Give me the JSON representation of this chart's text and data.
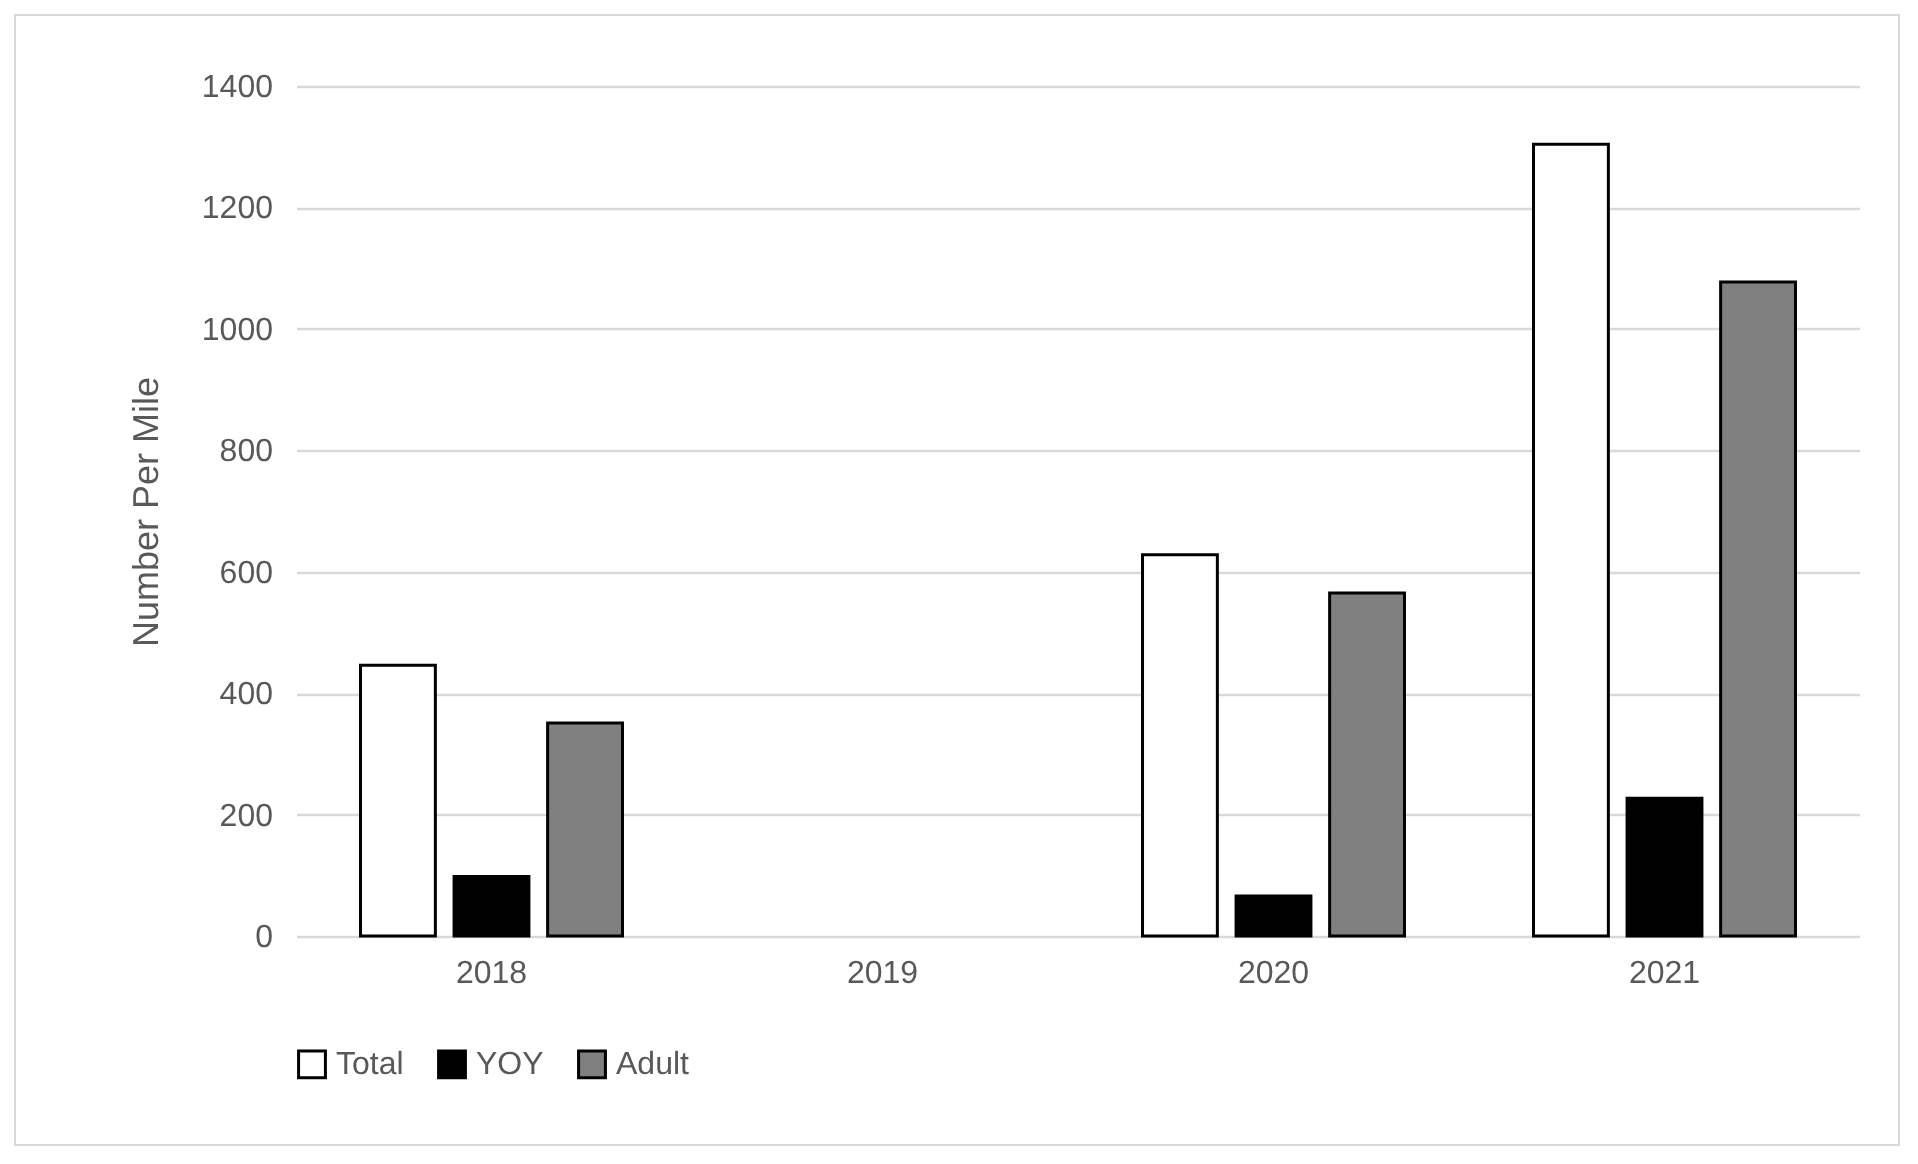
{
  "chart_data": {
    "type": "bar",
    "ylabel": "Number Per Mile",
    "categories": [
      "2018",
      "2019",
      "2020",
      "2021"
    ],
    "series": [
      {
        "name": "Total",
        "color": "#ffffff",
        "values": [
          446,
          null,
          628,
          1304
        ]
      },
      {
        "name": "YOY",
        "color": "#000000",
        "values": [
          98,
          null,
          66,
          227
        ]
      },
      {
        "name": "Adult",
        "color": "#808080",
        "values": [
          351,
          null,
          565,
          1077
        ]
      }
    ],
    "ylim": [
      0,
      1400
    ],
    "yticks": [
      0,
      200,
      400,
      600,
      800,
      1000,
      1200,
      1400
    ],
    "grid": "y",
    "legend": "bottom"
  }
}
